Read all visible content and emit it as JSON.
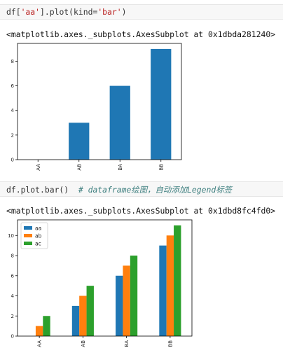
{
  "cells": [
    {
      "code": {
        "segments": [
          {
            "text": "df[",
            "style": "plain"
          },
          {
            "text": "'aa'",
            "style": "str"
          },
          {
            "text": "].plot(kind=",
            "style": "plain"
          },
          {
            "text": "'bar'",
            "style": "str"
          },
          {
            "text": ")",
            "style": "plain"
          }
        ]
      },
      "output": "<matplotlib.axes._subplots.AxesSubplot at 0x1dbda281240>"
    },
    {
      "code": {
        "segments": [
          {
            "text": "df.plot.bar()  ",
            "style": "plain"
          },
          {
            "text": "# dataframe绘图，自动添加Legend标签",
            "style": "comment"
          }
        ]
      },
      "output": "<matplotlib.axes._subplots.AxesSubplot at 0x1dbd8fc4fd0>"
    }
  ],
  "chart_data": [
    {
      "type": "bar",
      "categories": [
        "AA",
        "AB",
        "BA",
        "BB"
      ],
      "series": [
        {
          "values": [
            0,
            3,
            6,
            9
          ],
          "color": "#1f77b4"
        }
      ],
      "yticks": [
        0,
        2,
        4,
        6,
        8
      ],
      "ylim": [
        0,
        9.45
      ],
      "grid": false,
      "legend": null
    },
    {
      "type": "bar",
      "categories": [
        "AA",
        "AB",
        "BA",
        "BB"
      ],
      "series": [
        {
          "name": "aa",
          "values": [
            0,
            3,
            6,
            9
          ],
          "color": "#1f77b4"
        },
        {
          "name": "ab",
          "values": [
            1,
            4,
            7,
            10
          ],
          "color": "#ff7f0e"
        },
        {
          "name": "ac",
          "values": [
            2,
            5,
            8,
            11
          ],
          "color": "#2ca02c"
        }
      ],
      "yticks": [
        0,
        2,
        4,
        6,
        8,
        10
      ],
      "ylim": [
        0,
        11.55
      ],
      "grid": false,
      "legend": "upper-left"
    }
  ]
}
